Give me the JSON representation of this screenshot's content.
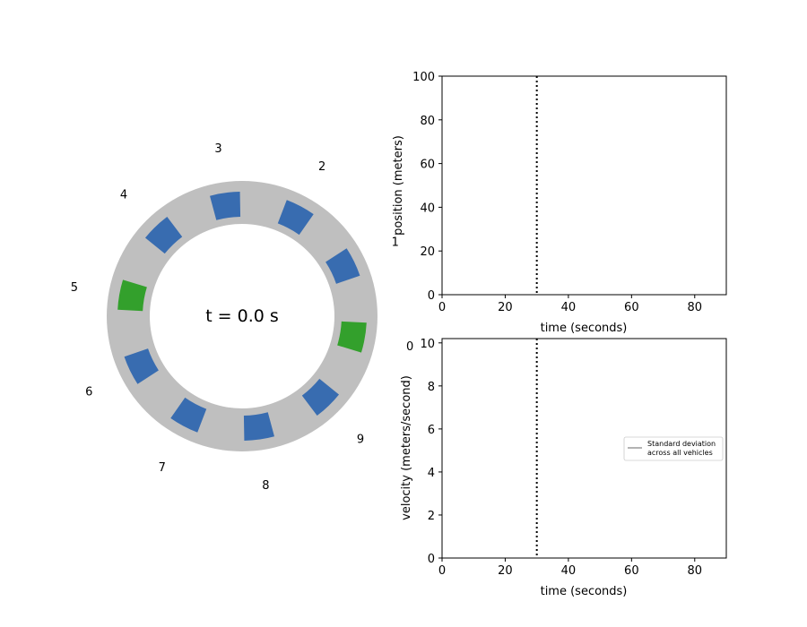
{
  "ring_panel": {
    "time_label": "t = 0.0 s",
    "colors": {
      "track": "#bfbfbf",
      "vehicle": "#386cb0",
      "highlight": "#33a02c"
    },
    "vehicles": [
      {
        "label": "0",
        "color_role": "highlight"
      },
      {
        "label": "1",
        "color_role": "vehicle"
      },
      {
        "label": "2",
        "color_role": "vehicle"
      },
      {
        "label": "3",
        "color_role": "vehicle"
      },
      {
        "label": "4",
        "color_role": "vehicle"
      },
      {
        "label": "5",
        "color_role": "highlight"
      },
      {
        "label": "6",
        "color_role": "vehicle"
      },
      {
        "label": "7",
        "color_role": "vehicle"
      },
      {
        "label": "8",
        "color_role": "vehicle"
      },
      {
        "label": "9",
        "color_role": "vehicle"
      }
    ]
  },
  "chart_data": [
    {
      "type": "line",
      "xlabel": "time (seconds)",
      "ylabel": "position (meters)",
      "xlim": [
        0,
        90
      ],
      "ylim": [
        0,
        100
      ],
      "xticks": [
        "0",
        "20",
        "40",
        "60",
        "80"
      ],
      "yticks": [
        "0",
        "20",
        "40",
        "60",
        "80",
        "100"
      ],
      "cursor_x": 30,
      "series": []
    },
    {
      "type": "line",
      "xlabel": "time (seconds)",
      "ylabel": "velocity (meters/second)",
      "xlim": [
        0,
        90
      ],
      "ylim": [
        0,
        10.2
      ],
      "xticks": [
        "0",
        "20",
        "40",
        "60",
        "80"
      ],
      "yticks": [
        "0",
        "2",
        "4",
        "6",
        "8",
        "10"
      ],
      "cursor_x": 30,
      "legend": {
        "entries": [
          "Standard deviation",
          "across all vehicles"
        ],
        "line_color": "#808080",
        "placement": "center-right"
      },
      "series": []
    }
  ]
}
